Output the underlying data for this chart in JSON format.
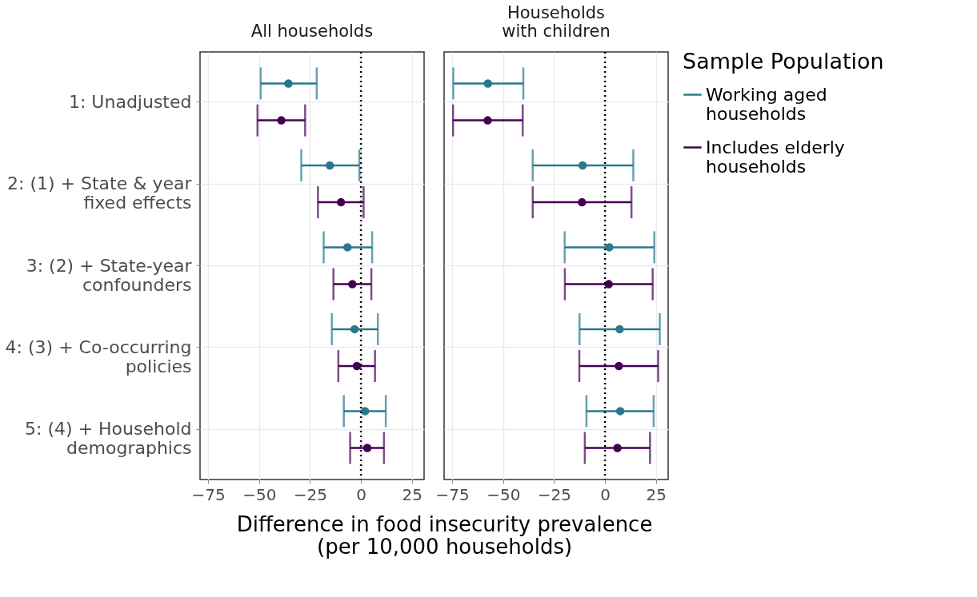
{
  "chart_data": [
    {
      "type": "scatter",
      "orientation": "horizontal",
      "title": "All households",
      "xlabel": "Difference in food insecurity prevalence\n(per 10,000 households)",
      "categories": [
        "1: Unadjusted",
        "2: (1) + State & year\nfixed effects",
        "3: (2) + State-year\nconfounders",
        "4: (3) + Co-occurring\npolicies",
        "5: (4) + Household\ndemographics"
      ],
      "xlim": [
        -79,
        31
      ],
      "xticks": [
        -75,
        -50,
        -25,
        0,
        25
      ],
      "grid": true,
      "marker": "circle",
      "ref_lines": [
        {
          "axis": "x",
          "value": 0,
          "line_style": "dotted",
          "color": "#000000"
        }
      ],
      "series": [
        {
          "color": "#2a788e",
          "values": [
            -35.6,
            -15.3,
            -6.6,
            -3.1,
            2.0
          ],
          "errors": [
            [
              -49.2,
              -21.7
            ],
            [
              -29.3,
              -0.8
            ],
            [
              -18.3,
              5.5
            ],
            [
              -14.3,
              8.3
            ],
            [
              -8.4,
              12.2
            ]
          ]
        },
        {
          "color": "#440154",
          "values": [
            -39.1,
            -9.8,
            -4.2,
            -2.0,
            3.1
          ],
          "errors": [
            [
              -50.8,
              -27.4
            ],
            [
              -21.1,
              1.3
            ],
            [
              -13.5,
              5.1
            ],
            [
              -11.1,
              6.9
            ],
            [
              -5.3,
              11.3
            ]
          ]
        }
      ]
    },
    {
      "type": "scatter",
      "orientation": "horizontal",
      "title": "Households\nwith children",
      "tick_labels": "x",
      "categories": [
        null,
        null,
        null,
        null,
        null
      ],
      "xlim": [
        -79,
        31
      ],
      "xticks": [
        -75,
        -50,
        -25,
        0,
        25
      ],
      "grid": true,
      "legend": "right",
      "legend_title": "Sample Population",
      "marker": "circle",
      "ref_lines": [
        {
          "axis": "x",
          "value": 0,
          "line_style": "dotted",
          "color": "#000000"
        }
      ],
      "series": [
        {
          "name": "Working aged\nhouseholds",
          "color": "#2a788e",
          "values": [
            -57.5,
            -11.0,
            2.1,
            7.2,
            7.5
          ],
          "errors": [
            [
              -74.5,
              -40.1
            ],
            [
              -35.5,
              13.9
            ],
            [
              -19.8,
              24.2
            ],
            [
              -12.5,
              26.9
            ],
            [
              -9.1,
              23.9
            ]
          ]
        },
        {
          "name": "Includes elderly\nhouseholds",
          "color": "#440154",
          "values": [
            -57.6,
            -11.3,
            1.8,
            6.8,
            6.1
          ],
          "errors": [
            [
              -74.6,
              -40.4
            ],
            [
              -35.5,
              13.0
            ],
            [
              -19.7,
              23.4
            ],
            [
              -12.6,
              26.1
            ],
            [
              -9.9,
              22.1
            ]
          ]
        }
      ]
    }
  ]
}
